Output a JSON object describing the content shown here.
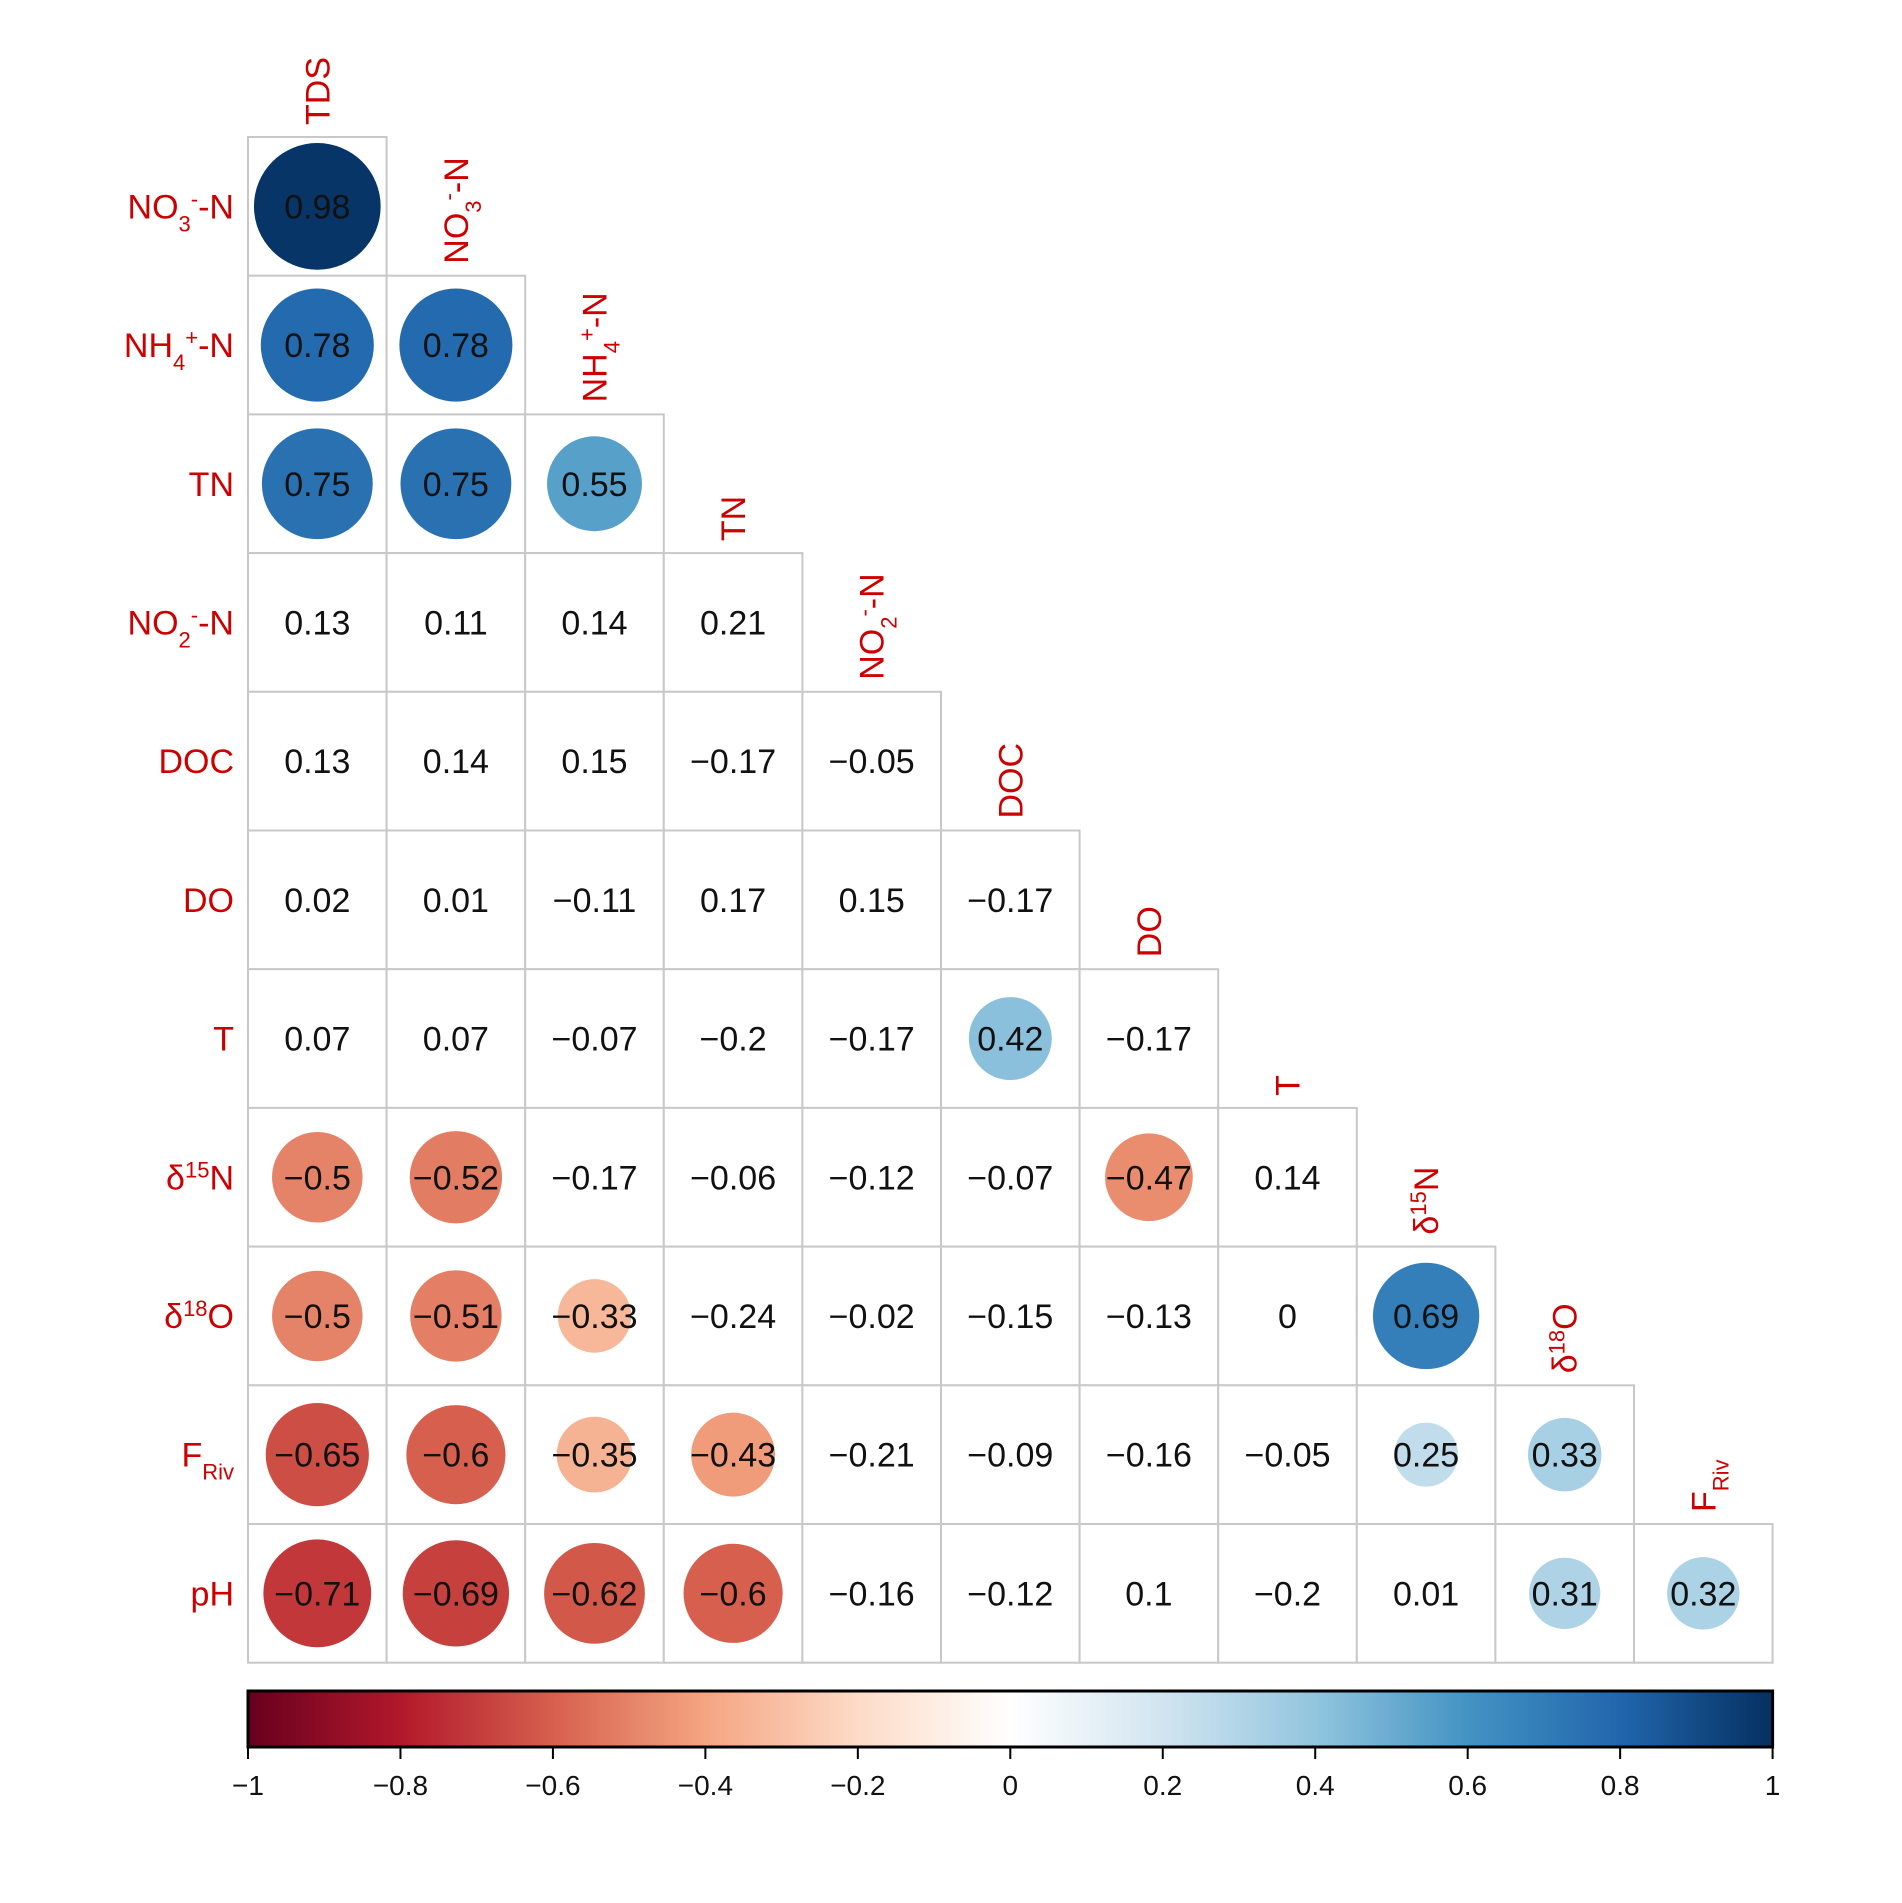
{
  "chart_data": {
    "type": "heatmap",
    "subtype": "correlation-matrix-lower-triangle",
    "title": "",
    "columns": [
      "TDS",
      "NO3--N",
      "NH4+-N",
      "TN",
      "NO2--N",
      "DOC",
      "DO",
      "T",
      "δ15N",
      "δ18O",
      "FRiv"
    ],
    "rows": [
      "NO3--N",
      "NH4+-N",
      "TN",
      "NO2--N",
      "DOC",
      "DO",
      "T",
      "δ15N",
      "δ18O",
      "FRiv",
      "pH"
    ],
    "labels": {
      "TDS": {
        "base": "TDS",
        "sub": "",
        "sup": "",
        "pre_sup": ""
      },
      "NO3--N": {
        "base": "NO",
        "sub": "3",
        "sup": "-",
        "tail": "-N"
      },
      "NH4+-N": {
        "base": "NH",
        "sub": "4",
        "sup": "+",
        "tail": "-N"
      },
      "TN": {
        "base": "TN"
      },
      "NO2--N": {
        "base": "NO",
        "sub": "2",
        "sup": "-",
        "tail": "-N"
      },
      "DOC": {
        "base": "DOC"
      },
      "DO": {
        "base": "DO"
      },
      "T": {
        "base": "T"
      },
      "δ15N": {
        "base": "δ",
        "sup": "15",
        "tail": "N"
      },
      "δ18O": {
        "base": "δ",
        "sup": "18",
        "tail": "O"
      },
      "FRiv": {
        "base": "F",
        "sub": "Riv"
      },
      "pH": {
        "base": "pH"
      }
    },
    "values": [
      [
        "0.98"
      ],
      [
        "0.78",
        "0.78"
      ],
      [
        "0.75",
        "0.75",
        "0.55"
      ],
      [
        "0.13",
        "0.11",
        "0.14",
        "0.21"
      ],
      [
        "0.13",
        "0.14",
        "0.15",
        "−0.17",
        "−0.05"
      ],
      [
        "0.02",
        "0.01",
        "−0.11",
        "0.17",
        "0.15",
        "−0.17"
      ],
      [
        "0.07",
        "0.07",
        "−0.07",
        "−0.2",
        "−0.17",
        "0.42",
        "−0.17"
      ],
      [
        "−0.5",
        "−0.52",
        "−0.17",
        "−0.06",
        "−0.12",
        "−0.07",
        "−0.47",
        "0.14"
      ],
      [
        "−0.5",
        "−0.51",
        "−0.33",
        "−0.24",
        "−0.02",
        "−0.15",
        "−0.13",
        "0",
        "0.69"
      ],
      [
        "−0.65",
        "−0.6",
        "−0.35",
        "−0.43",
        "−0.21",
        "−0.09",
        "−0.16",
        "−0.05",
        "0.25",
        "0.33"
      ],
      [
        "−0.71",
        "−0.69",
        "−0.62",
        "−0.6",
        "−0.16",
        "−0.12",
        "0.1",
        "−0.2",
        "0.01",
        "0.31",
        "0.32"
      ]
    ],
    "significance_circle_threshold": 0.25,
    "colorbar": {
      "range": [
        -1,
        1
      ],
      "ticks": [
        "−1",
        "−0.8",
        "−0.6",
        "−0.4",
        "−0.2",
        "0",
        "0.2",
        "0.4",
        "0.6",
        "0.8",
        "1"
      ],
      "tick_values": [
        -1,
        -0.8,
        -0.6,
        -0.4,
        -0.2,
        0,
        0.2,
        0.4,
        0.6,
        0.8,
        1
      ],
      "palette": [
        "#67001f",
        "#b2182b",
        "#d6604d",
        "#f4a582",
        "#fddbc7",
        "#ffffff",
        "#d1e5f0",
        "#92c5de",
        "#4393c3",
        "#2166ac",
        "#053061"
      ],
      "orientation": "horizontal",
      "placement": "bottom"
    },
    "label_color": "#cc0000",
    "grid_color": "#c8c8c8"
  }
}
